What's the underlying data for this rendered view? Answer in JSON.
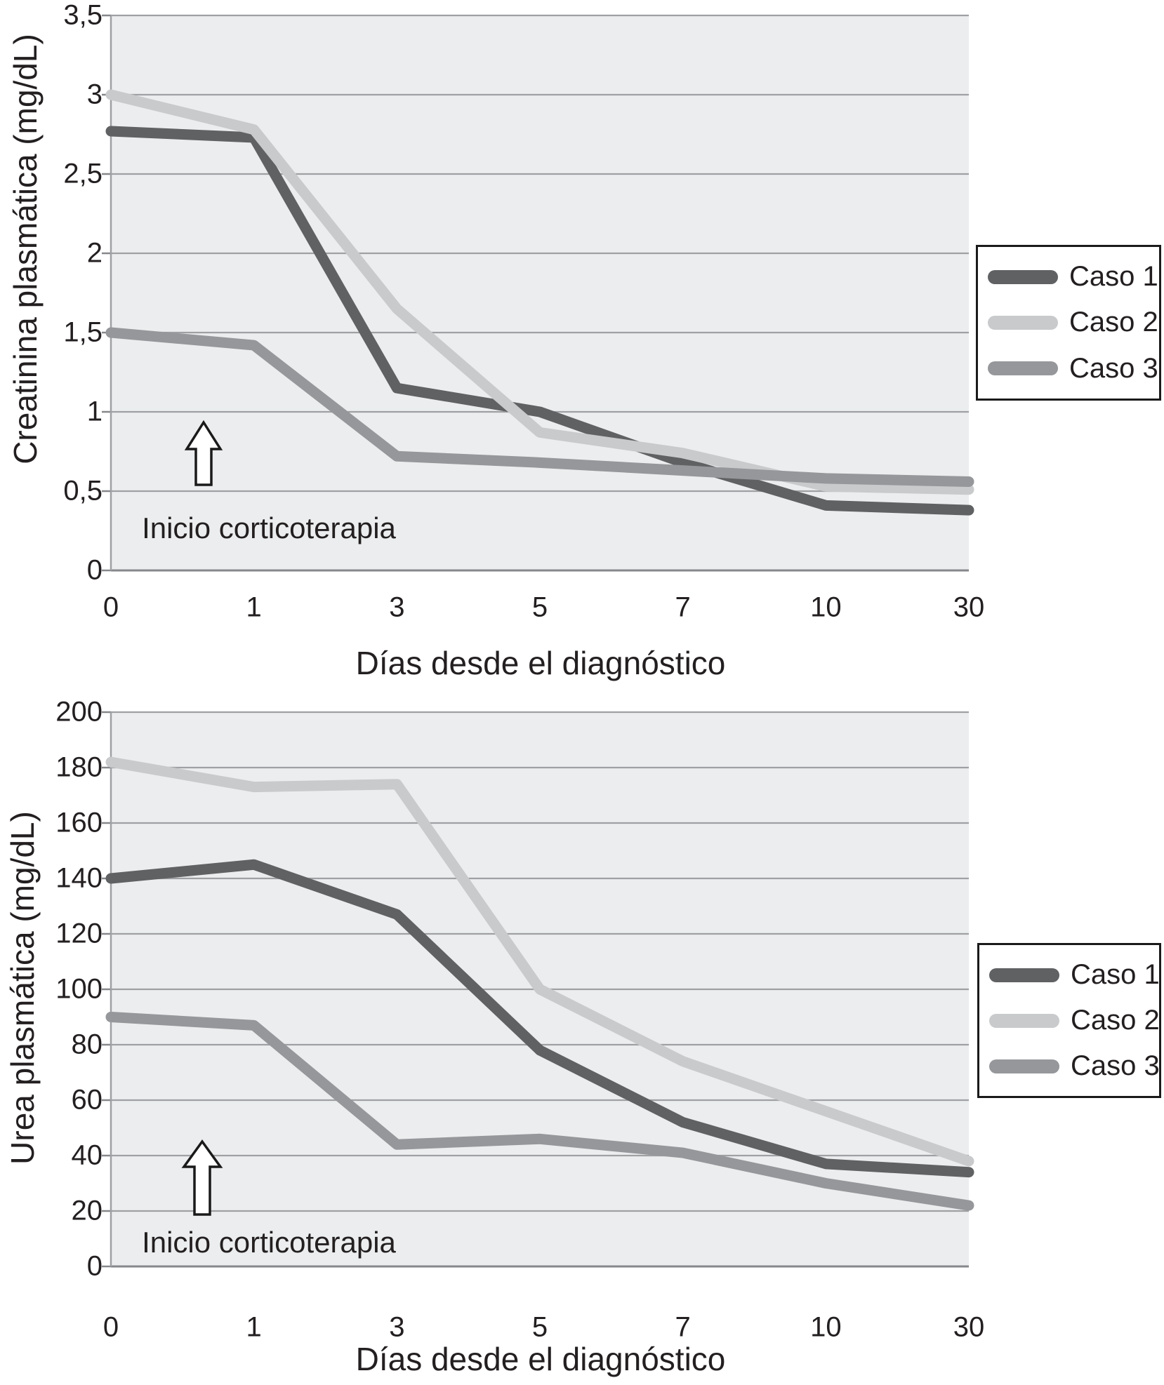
{
  "figure": {
    "colors": {
      "caso1": "#5f6163",
      "caso2": "#c8cacc",
      "caso3": "#95979a",
      "plot_background": "#ebedee",
      "gridline": "#9ea0a3",
      "axis_line": "#85878a",
      "text": "#231f20",
      "legend_border": "#1a1a1a",
      "legend_background": "#ffffff",
      "arrow_fill": "#ffffff",
      "arrow_outline": "#1a1a1a"
    }
  },
  "chart_data": [
    {
      "type": "line",
      "title": "",
      "xlabel": "Días desde el diagnóstico",
      "ylabel": "Creatinina plasmática (mg/dL)",
      "categories": [
        "0",
        "1",
        "3",
        "5",
        "7",
        "10",
        "30"
      ],
      "ylim": [
        0,
        3.5
      ],
      "ytick_step": 0.5,
      "ytick_labels": [
        "0",
        "0,5",
        "1",
        "1,5",
        "2",
        "2,5",
        "3",
        "3,5"
      ],
      "grid": true,
      "legend_position": "right-outside",
      "annotation": {
        "text": "Inicio corticoterapia",
        "arrow": "up-block-arrow",
        "arrow_at_category": "1"
      },
      "series": [
        {
          "name": "Caso 1",
          "color": "#5f6163",
          "values": [
            2.77,
            2.73,
            1.15,
            1.0,
            0.68,
            0.41,
            0.38
          ]
        },
        {
          "name": "Caso 2",
          "color": "#c8cacc",
          "values": [
            3.0,
            2.78,
            1.65,
            0.87,
            0.74,
            0.53,
            0.51
          ]
        },
        {
          "name": "Caso 3",
          "color": "#95979a",
          "values": [
            1.5,
            1.42,
            0.72,
            0.68,
            0.63,
            0.58,
            0.56
          ]
        }
      ]
    },
    {
      "type": "line",
      "title": "",
      "xlabel": "Días desde el diagnóstico",
      "ylabel": "Urea plasmática (mg/dL)",
      "categories": [
        "0",
        "1",
        "3",
        "5",
        "7",
        "10",
        "30"
      ],
      "ylim": [
        0,
        200
      ],
      "ytick_step": 20,
      "ytick_labels": [
        "0",
        "20",
        "40",
        "60",
        "80",
        "100",
        "120",
        "140",
        "160",
        "180",
        "200"
      ],
      "grid": true,
      "legend_position": "right-outside",
      "annotation": {
        "text": "Inicio corticoterapia",
        "arrow": "up-block-arrow",
        "arrow_at_category": "1"
      },
      "series": [
        {
          "name": "Caso 1",
          "color": "#5f6163",
          "values": [
            140,
            145,
            127,
            78,
            52,
            37,
            34
          ]
        },
        {
          "name": "Caso 2",
          "color": "#c8cacc",
          "values": [
            182,
            173,
            174,
            100,
            74,
            56,
            38
          ]
        },
        {
          "name": "Caso 3",
          "color": "#95979a",
          "values": [
            90,
            87,
            44,
            46,
            41,
            30,
            22
          ]
        }
      ]
    }
  ]
}
